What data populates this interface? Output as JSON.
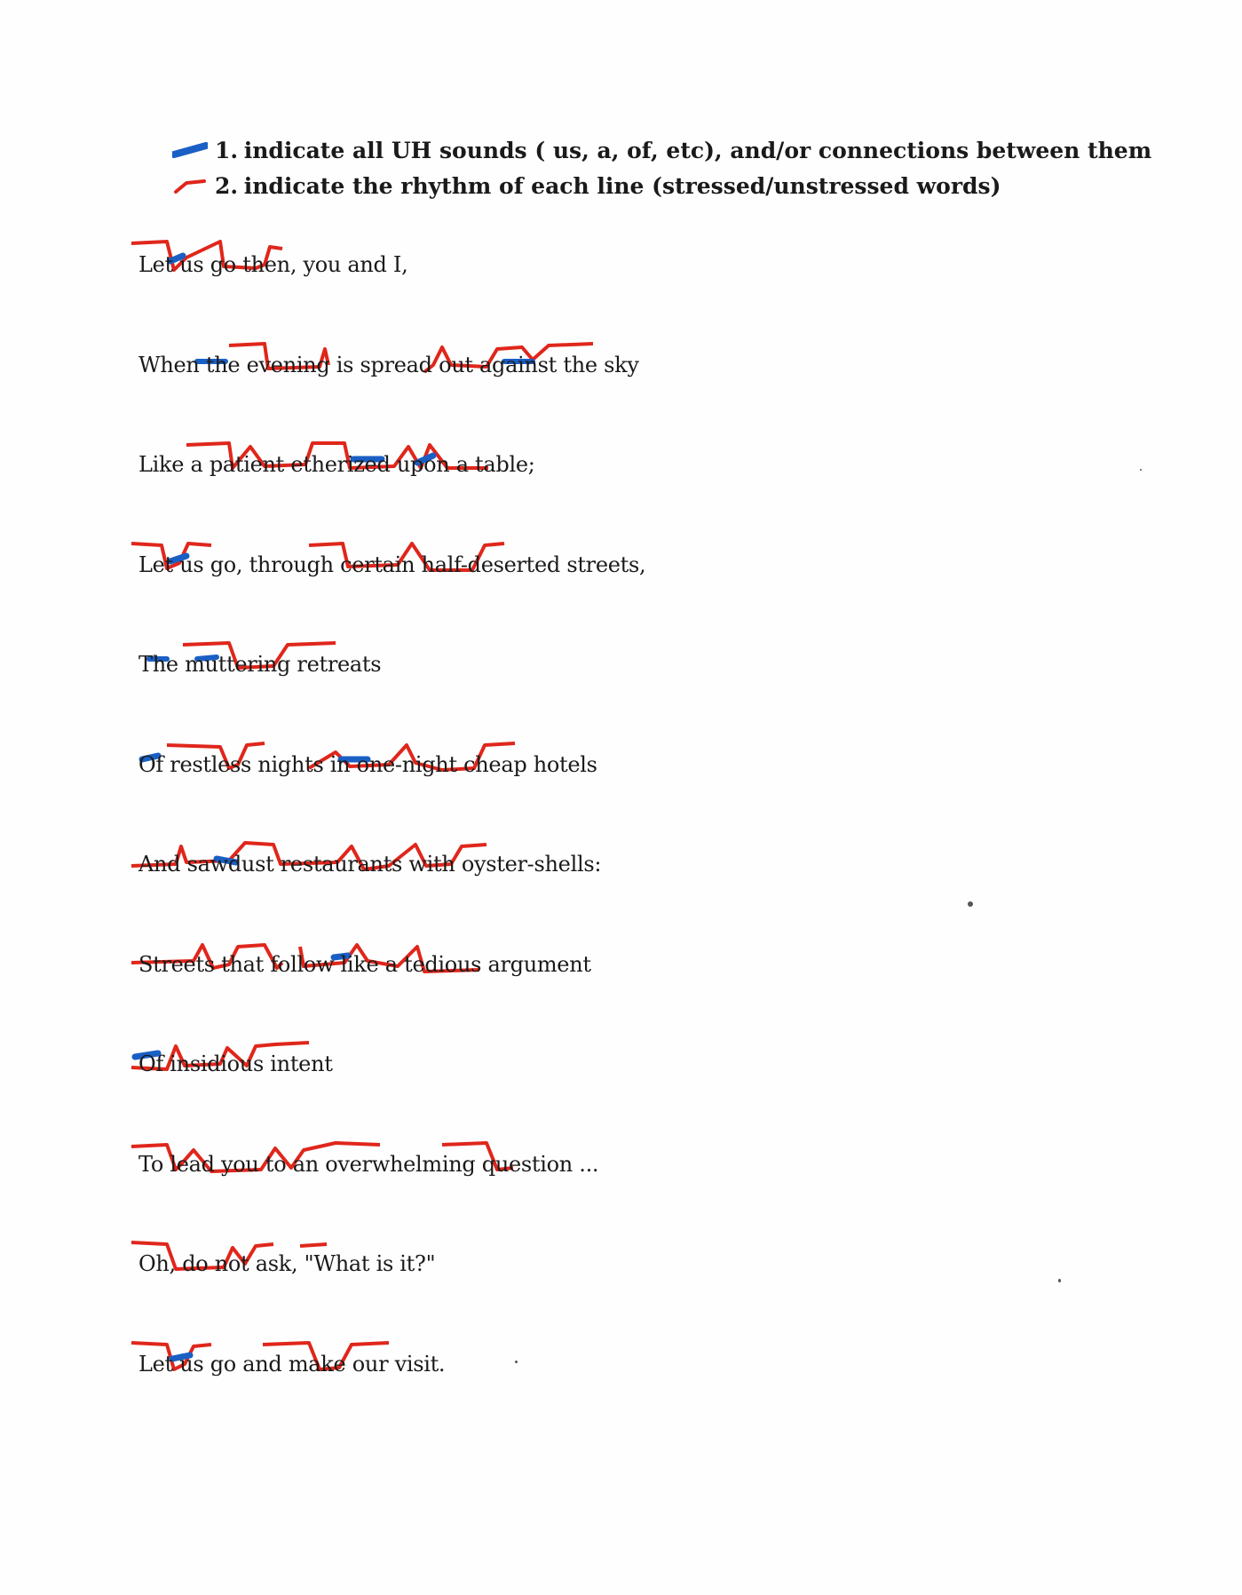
{
  "instructions": [
    {
      "number": "1.",
      "text": "indicate all  UH  sounds ( us,  a,  of,  etc), and/or connections between them",
      "mark_color": "#1a5fc4"
    },
    {
      "number": "2.",
      "text": "indicate the rhythm of each line (stressed/unstressed words)",
      "mark_color": "#e0261b"
    }
  ],
  "poem": {
    "lines": [
      "Let us go then, you and I,",
      "When the evening is spread out against the sky",
      "Like a patient etherized upon a table;",
      "Let us go, through certain half-deserted streets,",
      "The muttering retreats",
      "Of restless nights in one-night cheap hotels",
      "And sawdust restaurants with oyster-shells:",
      "Streets that follow like a tedious argument",
      "Of insidious intent",
      "To lead you to an overwhelming question ...",
      "Oh, do not ask, \"What is it?\"",
      "Let us go and make our visit."
    ]
  },
  "annotation_colors": {
    "stress": "#e0261b",
    "uh_sound": "#1a5fc4"
  }
}
